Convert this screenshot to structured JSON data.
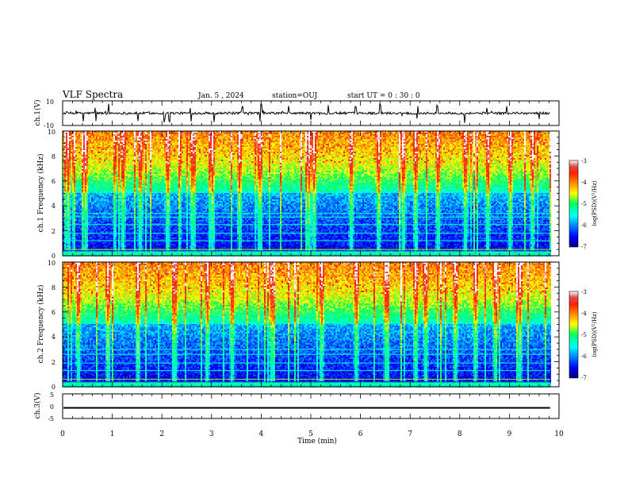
{
  "header": {
    "title": "VLF Spectra",
    "date": "Jan. 5 , 2024",
    "station": "station=OUJ",
    "start": "start UT =  0 : 30 : 0"
  },
  "chart_data": [
    {
      "type": "line",
      "panel": "ch1-waveform",
      "ylabel": "ch.1(V)",
      "ylim": [
        -10,
        10
      ],
      "yticks": [
        "10",
        "-10"
      ],
      "xlim": [
        0,
        10
      ],
      "baseline_value": 0.0,
      "noise_amplitude": 0.6,
      "spike_times_min": [
        0.42,
        0.66,
        0.93,
        1.52,
        2.05,
        2.15,
        2.58,
        3.05,
        3.62,
        3.98,
        4.0,
        4.55,
        5.0,
        5.35,
        5.9,
        6.4,
        7.15,
        7.55,
        8.1,
        8.55,
        8.95,
        9.6
      ]
    },
    {
      "type": "heatmap",
      "panel": "ch1-spectrogram",
      "ylabel": "ch.1 Frequency (kHz)",
      "xlim": [
        0,
        10
      ],
      "ylim": [
        0,
        10
      ],
      "yticks": [
        "0",
        "2",
        "4",
        "6",
        "8",
        "10"
      ],
      "data_xmax_min": 9.82,
      "colorbar": {
        "label": "log(PSD)(V²/Hz)",
        "range": [
          -7,
          -3
        ],
        "ticks": [
          "-3",
          "-4",
          "-5",
          "-6",
          "-7"
        ]
      },
      "band_khz": [
        0.5,
        1.2,
        1.8,
        2.5,
        3.1,
        3.4
      ],
      "bright_times_min": [
        0.1,
        0.45,
        1.2,
        1.55,
        2.1,
        2.6,
        3.0,
        3.55,
        3.95,
        4.95,
        5.05,
        5.8,
        6.35,
        6.85,
        7.1,
        7.55,
        8.1,
        8.55,
        9.0,
        9.45
      ]
    },
    {
      "type": "heatmap",
      "panel": "ch2-spectrogram",
      "ylabel": "ch.2 Frequency (kHz)",
      "xlim": [
        0,
        10
      ],
      "ylim": [
        0,
        10
      ],
      "yticks": [
        "0",
        "2",
        "4",
        "6",
        "8",
        "10"
      ],
      "data_xmax_min": 9.82,
      "colorbar": {
        "label": "log(PSD)(V²/Hz)",
        "range": [
          -7,
          -3
        ],
        "ticks": [
          "-3",
          "-4",
          "-5",
          "-6",
          "-7"
        ]
      },
      "band_khz": [
        0.6,
        1.3,
        1.9,
        2.6,
        3.0
      ],
      "bright_times_min": [
        0.3,
        0.9,
        1.5,
        2.25,
        2.9,
        3.4,
        4.2,
        5.2,
        5.9,
        6.5,
        7.1,
        7.3,
        7.9,
        8.3,
        8.7,
        9.2
      ]
    },
    {
      "type": "line",
      "panel": "ch3-waveform",
      "ylabel": "ch.3(V)",
      "ylim": [
        -5,
        5
      ],
      "yticks": [
        "5",
        "0",
        "-5"
      ],
      "xlim": [
        0,
        10
      ],
      "xlabel": "Time (min)",
      "xticks": [
        "0",
        "1",
        "2",
        "3",
        "4",
        "5",
        "6",
        "7",
        "8",
        "9",
        "10"
      ],
      "baseline_value": -0.6,
      "trace_halfwidth_value": 0.25
    }
  ]
}
